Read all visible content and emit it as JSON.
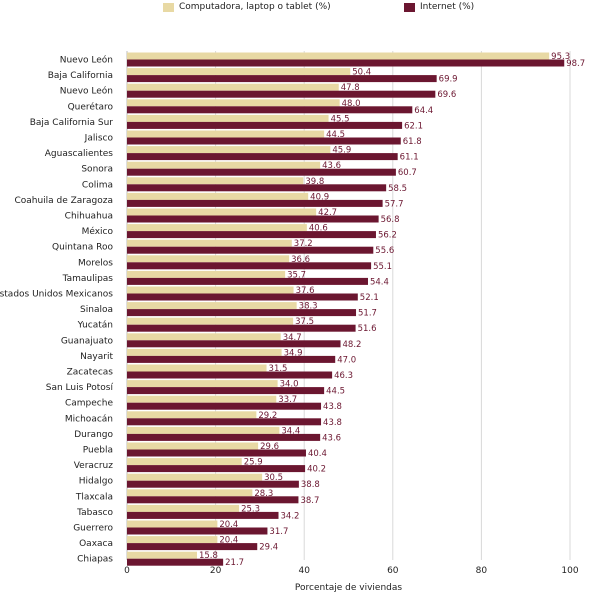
{
  "chart_data": {
    "type": "bar",
    "orientation": "horizontal",
    "categories": [
      "Nuevo León",
      "Baja California",
      "Nuevo León",
      "Querétaro",
      "Baja California Sur",
      "Jalisco",
      "Aguascalientes",
      "Sonora",
      "Colima",
      "Coahuila de Zaragoza",
      "Chihuahua",
      "México",
      "Quintana Roo",
      "Morelos",
      "Tamaulipas",
      "Estados Unidos Mexicanos",
      "Sinaloa",
      "Yucatán",
      "Guanajuato",
      "Nayarit",
      "Zacatecas",
      "San Luis Potosí",
      "Campeche",
      "Michoacán",
      "Durango",
      "Puebla",
      "Veracruz",
      "Hidalgo",
      "Tlaxcala",
      "Tabasco",
      "Guerrero",
      "Oaxaca",
      "Chiapas"
    ],
    "series": [
      {
        "name": "Computadora, laptop o tablet (%)",
        "color": "#e8d9a4",
        "values": [
          95.3,
          50.4,
          47.8,
          48.0,
          45.5,
          44.5,
          45.9,
          43.6,
          39.8,
          40.9,
          42.7,
          40.6,
          37.2,
          36.6,
          35.7,
          37.6,
          38.3,
          37.5,
          34.7,
          34.9,
          31.5,
          34.0,
          33.7,
          29.2,
          34.4,
          29.6,
          25.9,
          30.5,
          28.3,
          25.3,
          20.4,
          20.4,
          15.8
        ]
      },
      {
        "name": "Internet (%)",
        "color": "#6b1630",
        "values": [
          98.7,
          69.9,
          69.6,
          64.4,
          62.1,
          61.8,
          61.1,
          60.7,
          58.5,
          57.7,
          56.8,
          56.2,
          55.6,
          55.1,
          54.4,
          52.1,
          51.7,
          51.6,
          48.2,
          47.0,
          46.3,
          44.5,
          43.8,
          43.8,
          43.6,
          40.4,
          40.2,
          38.8,
          38.7,
          34.2,
          31.7,
          29.4,
          21.7
        ]
      }
    ],
    "value_labels": [
      [
        "95.3",
        "50.4",
        "47.8",
        "48.0",
        "45.5",
        "44.5",
        "45.9",
        "43.6",
        "39.8",
        "40.9",
        "42.7",
        "40.6",
        "37.2",
        "36.6",
        "35.7",
        "37.6",
        "38.3",
        "37.5",
        "34.7",
        "34.9",
        "31.5",
        "34.0",
        "33.7",
        "29.2",
        "34.4",
        "29.6",
        "25.9",
        "30.5",
        "28.3",
        "25.3",
        "20.4",
        "20.4",
        "15.8"
      ],
      [
        "98.7",
        "69.9",
        "69.6",
        "64.4",
        "62.1",
        "61.8",
        "61.1",
        "60.7",
        "58.5",
        "57.7",
        "56.8",
        "56.2",
        "55.6",
        "55.1",
        "54.4",
        "52.1",
        "51.7",
        "51.6",
        "48.2",
        "47.0",
        "46.3",
        "44.5",
        "43.8",
        "43.8",
        "43.6",
        "40.4",
        "40.2",
        "38.8",
        "38.7",
        "34.2",
        "31.7",
        "29.4",
        "21.7"
      ]
    ],
    "xlabel": "Porcentaje de viviendas",
    "ylabel": "",
    "xlim": [
      0,
      100
    ],
    "xticks": [
      0,
      20,
      40,
      60,
      80,
      100
    ],
    "xtick_labels": [
      "0",
      "20",
      "40",
      "60",
      "80",
      "100"
    ],
    "grid": "vertical",
    "legend_position": "top"
  }
}
